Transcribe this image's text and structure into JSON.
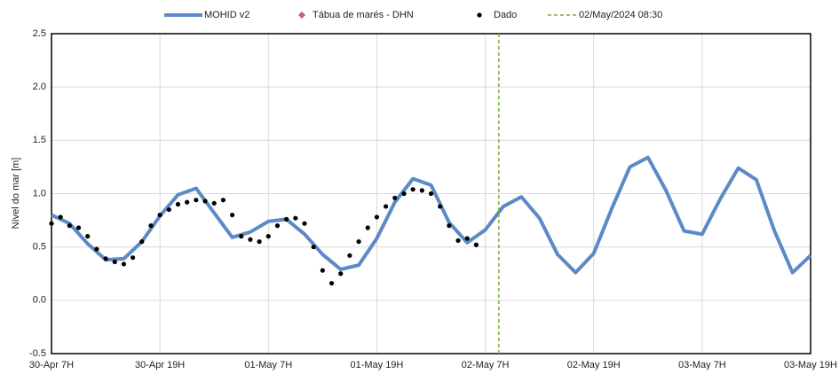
{
  "chart_data": {
    "type": "line",
    "y_label": "Nível do mar [m]",
    "xlim": [
      0,
      84
    ],
    "xticks": [
      {
        "value": 0,
        "label": "30-Apr 7H"
      },
      {
        "value": 12,
        "label": "30-Apr 19H"
      },
      {
        "value": 24,
        "label": "01-May 7H"
      },
      {
        "value": 36,
        "label": "01-May 19H"
      },
      {
        "value": 48,
        "label": "02-May 7H"
      },
      {
        "value": 60,
        "label": "02-May 19H"
      },
      {
        "value": 72,
        "label": "03-May 7H"
      },
      {
        "value": 84,
        "label": "03-May 19H"
      }
    ],
    "ylim": [
      -0.5,
      2.5
    ],
    "yticks": [
      -0.5,
      {
        "value": 0,
        "label": "0.0"
      },
      0.5,
      {
        "value": 1,
        "label": "1.0"
      },
      1.5,
      {
        "value": 2,
        "label": "2.0"
      },
      2.5
    ],
    "grid": true,
    "legend": "top",
    "series": [
      {
        "name": "MOHID v2",
        "color": "#5b8ac6",
        "style": "line",
        "x": [
          0,
          2,
          4,
          6,
          8,
          10,
          12,
          14,
          16,
          18,
          20,
          22,
          24,
          26,
          28,
          30,
          32,
          34,
          36,
          38,
          40,
          42,
          44,
          46,
          48,
          50,
          52,
          54,
          56,
          58,
          60,
          62,
          64,
          66,
          68,
          70,
          72,
          74,
          76,
          78,
          80,
          82,
          84
        ],
        "values": [
          0.8,
          0.72,
          0.53,
          0.38,
          0.39,
          0.55,
          0.79,
          0.99,
          1.05,
          0.82,
          0.59,
          0.64,
          0.74,
          0.76,
          0.62,
          0.43,
          0.29,
          0.33,
          0.58,
          0.92,
          1.14,
          1.08,
          0.73,
          0.54,
          0.66,
          0.88,
          0.97,
          0.77,
          0.43,
          0.26,
          0.44,
          0.86,
          1.25,
          1.34,
          1.03,
          0.65,
          0.62,
          0.95,
          1.24,
          1.13,
          0.65,
          0.26,
          0.42
        ]
      },
      {
        "name": "Tábua de marés - DHN",
        "color": "#c0607a",
        "style": "diamond",
        "x": [],
        "values": []
      },
      {
        "name": "Dado",
        "color": "#000000",
        "style": "dot",
        "x": [
          0,
          1,
          2,
          3,
          4,
          5,
          6,
          7,
          8,
          9,
          10,
          11,
          12,
          13,
          14,
          15,
          16,
          17,
          18,
          19,
          20,
          21,
          22,
          23,
          24,
          25,
          26,
          27,
          28,
          29,
          30,
          31,
          32,
          33,
          34,
          35,
          36,
          37,
          38,
          39,
          40,
          41,
          42,
          43,
          44,
          45,
          46,
          47
        ],
        "values": [
          0.72,
          0.78,
          0.7,
          0.68,
          0.6,
          0.48,
          0.39,
          0.36,
          0.34,
          0.4,
          0.55,
          0.7,
          0.8,
          0.85,
          0.9,
          0.92,
          0.94,
          0.93,
          0.91,
          0.94,
          0.8,
          0.6,
          0.57,
          0.55,
          0.6,
          0.7,
          0.76,
          0.77,
          0.72,
          0.5,
          0.28,
          0.16,
          0.25,
          0.42,
          0.55,
          0.68,
          0.78,
          0.88,
          0.96,
          1.0,
          1.04,
          1.03,
          1.0,
          0.88,
          0.7,
          0.56,
          0.58,
          0.52
        ]
      }
    ],
    "reference_line": {
      "name": "02/May/2024 08:30",
      "x": 49.5,
      "color": "#7aad3a"
    }
  }
}
